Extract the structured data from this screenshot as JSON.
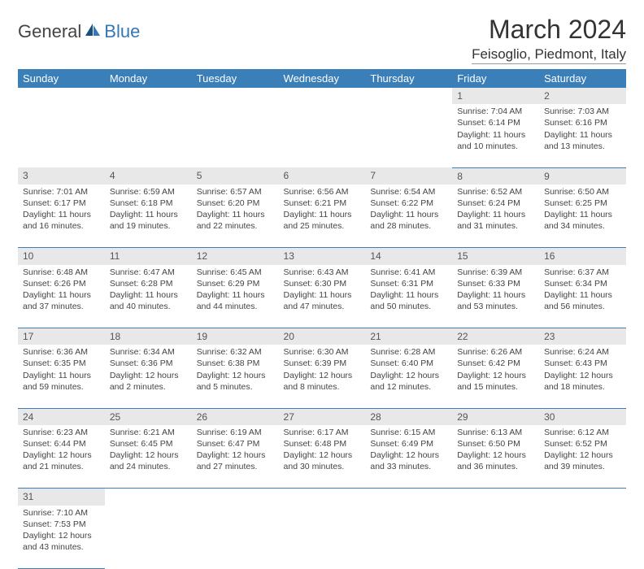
{
  "logo": {
    "part1": "General",
    "part2": "Blue"
  },
  "title": "March 2024",
  "location": "Feisoglio, Piedmont, Italy",
  "colors": {
    "header_bg": "#3b7fb8",
    "header_text": "#ffffff",
    "daynum_bg": "#e8e8e8",
    "border": "#3b7fb8",
    "logo_accent": "#3478b8"
  },
  "dayHeaders": [
    "Sunday",
    "Monday",
    "Tuesday",
    "Wednesday",
    "Thursday",
    "Friday",
    "Saturday"
  ],
  "weeks": [
    [
      null,
      null,
      null,
      null,
      null,
      {
        "n": "1",
        "sr": "7:04 AM",
        "ss": "6:14 PM",
        "dl": "11 hours and 10 minutes."
      },
      {
        "n": "2",
        "sr": "7:03 AM",
        "ss": "6:16 PM",
        "dl": "11 hours and 13 minutes."
      }
    ],
    [
      {
        "n": "3",
        "sr": "7:01 AM",
        "ss": "6:17 PM",
        "dl": "11 hours and 16 minutes."
      },
      {
        "n": "4",
        "sr": "6:59 AM",
        "ss": "6:18 PM",
        "dl": "11 hours and 19 minutes."
      },
      {
        "n": "5",
        "sr": "6:57 AM",
        "ss": "6:20 PM",
        "dl": "11 hours and 22 minutes."
      },
      {
        "n": "6",
        "sr": "6:56 AM",
        "ss": "6:21 PM",
        "dl": "11 hours and 25 minutes."
      },
      {
        "n": "7",
        "sr": "6:54 AM",
        "ss": "6:22 PM",
        "dl": "11 hours and 28 minutes."
      },
      {
        "n": "8",
        "sr": "6:52 AM",
        "ss": "6:24 PM",
        "dl": "11 hours and 31 minutes."
      },
      {
        "n": "9",
        "sr": "6:50 AM",
        "ss": "6:25 PM",
        "dl": "11 hours and 34 minutes."
      }
    ],
    [
      {
        "n": "10",
        "sr": "6:48 AM",
        "ss": "6:26 PM",
        "dl": "11 hours and 37 minutes."
      },
      {
        "n": "11",
        "sr": "6:47 AM",
        "ss": "6:28 PM",
        "dl": "11 hours and 40 minutes."
      },
      {
        "n": "12",
        "sr": "6:45 AM",
        "ss": "6:29 PM",
        "dl": "11 hours and 44 minutes."
      },
      {
        "n": "13",
        "sr": "6:43 AM",
        "ss": "6:30 PM",
        "dl": "11 hours and 47 minutes."
      },
      {
        "n": "14",
        "sr": "6:41 AM",
        "ss": "6:31 PM",
        "dl": "11 hours and 50 minutes."
      },
      {
        "n": "15",
        "sr": "6:39 AM",
        "ss": "6:33 PM",
        "dl": "11 hours and 53 minutes."
      },
      {
        "n": "16",
        "sr": "6:37 AM",
        "ss": "6:34 PM",
        "dl": "11 hours and 56 minutes."
      }
    ],
    [
      {
        "n": "17",
        "sr": "6:36 AM",
        "ss": "6:35 PM",
        "dl": "11 hours and 59 minutes."
      },
      {
        "n": "18",
        "sr": "6:34 AM",
        "ss": "6:36 PM",
        "dl": "12 hours and 2 minutes."
      },
      {
        "n": "19",
        "sr": "6:32 AM",
        "ss": "6:38 PM",
        "dl": "12 hours and 5 minutes."
      },
      {
        "n": "20",
        "sr": "6:30 AM",
        "ss": "6:39 PM",
        "dl": "12 hours and 8 minutes."
      },
      {
        "n": "21",
        "sr": "6:28 AM",
        "ss": "6:40 PM",
        "dl": "12 hours and 12 minutes."
      },
      {
        "n": "22",
        "sr": "6:26 AM",
        "ss": "6:42 PM",
        "dl": "12 hours and 15 minutes."
      },
      {
        "n": "23",
        "sr": "6:24 AM",
        "ss": "6:43 PM",
        "dl": "12 hours and 18 minutes."
      }
    ],
    [
      {
        "n": "24",
        "sr": "6:23 AM",
        "ss": "6:44 PM",
        "dl": "12 hours and 21 minutes."
      },
      {
        "n": "25",
        "sr": "6:21 AM",
        "ss": "6:45 PM",
        "dl": "12 hours and 24 minutes."
      },
      {
        "n": "26",
        "sr": "6:19 AM",
        "ss": "6:47 PM",
        "dl": "12 hours and 27 minutes."
      },
      {
        "n": "27",
        "sr": "6:17 AM",
        "ss": "6:48 PM",
        "dl": "12 hours and 30 minutes."
      },
      {
        "n": "28",
        "sr": "6:15 AM",
        "ss": "6:49 PM",
        "dl": "12 hours and 33 minutes."
      },
      {
        "n": "29",
        "sr": "6:13 AM",
        "ss": "6:50 PM",
        "dl": "12 hours and 36 minutes."
      },
      {
        "n": "30",
        "sr": "6:12 AM",
        "ss": "6:52 PM",
        "dl": "12 hours and 39 minutes."
      }
    ],
    [
      {
        "n": "31",
        "sr": "7:10 AM",
        "ss": "7:53 PM",
        "dl": "12 hours and 43 minutes."
      },
      null,
      null,
      null,
      null,
      null,
      null
    ]
  ],
  "labels": {
    "sunrise": "Sunrise:",
    "sunset": "Sunset:",
    "daylight": "Daylight:"
  }
}
